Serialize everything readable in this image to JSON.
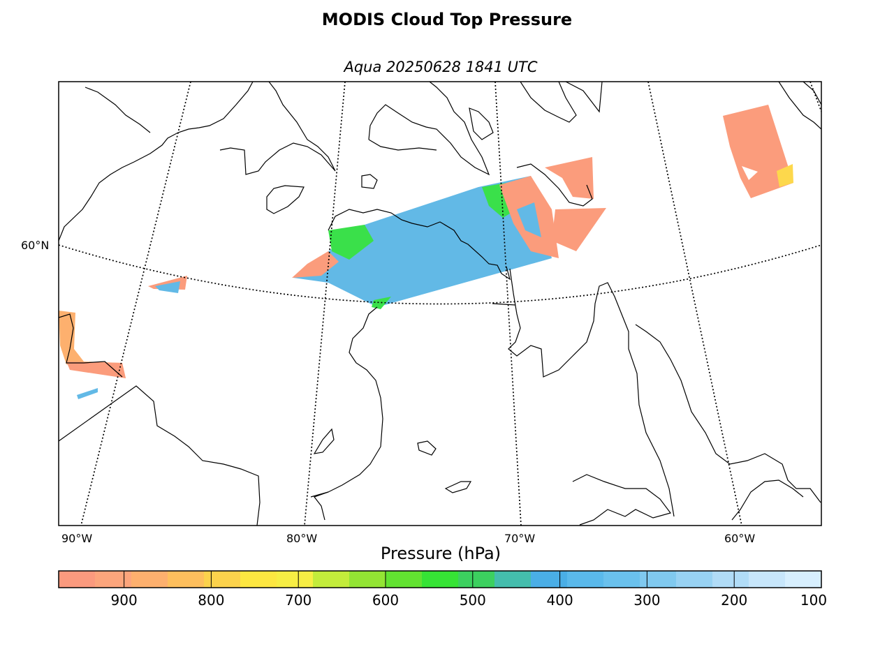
{
  "title": "MODIS Cloud Top Pressure",
  "subtitle": "Aqua 20250628 1841 UTC",
  "map": {
    "lon_labels": [
      "90°W",
      "80°W",
      "70°W",
      "60°W"
    ],
    "lat_labels": [
      "60°N"
    ]
  },
  "colorbar": {
    "label": "Pressure (hPa)",
    "ticks": [
      "900",
      "800",
      "700",
      "600",
      "500",
      "400",
      "300",
      "200",
      "100"
    ],
    "range_hpa": [
      975,
      100
    ],
    "colors": [
      "#fb9a7e",
      "#fca57c",
      "#fdb06e",
      "#febf5d",
      "#fcd24c",
      "#fde741",
      "#f7ee44",
      "#c3ec3b",
      "#93e434",
      "#62e231",
      "#36e335",
      "#3cd05f",
      "#44bdad",
      "#4aaee6",
      "#5ab9eb",
      "#6ac1ed",
      "#80c9ef",
      "#98d2f3",
      "#b1dcf7",
      "#c7e6fb",
      "#d7effe"
    ]
  },
  "cloud_colors": {
    "low_cloud": "#fb9c7c",
    "mid_cloud": "#3ae04a",
    "high_cloud": "#62b9e6"
  }
}
